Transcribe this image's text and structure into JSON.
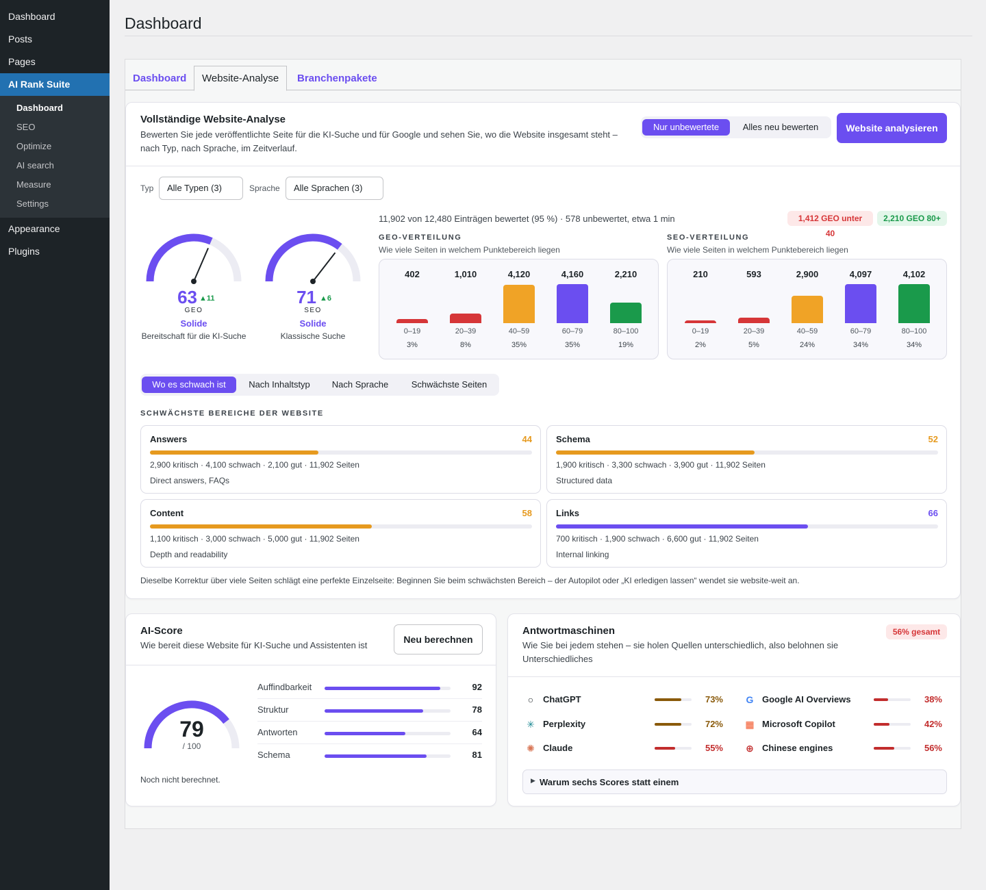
{
  "sidebar": {
    "items": [
      {
        "label": "Dashboard"
      },
      {
        "label": "Posts"
      },
      {
        "label": "Pages"
      },
      {
        "label": "AI Rank Suite"
      }
    ],
    "submenu": [
      {
        "label": "Dashboard"
      },
      {
        "label": "SEO"
      },
      {
        "label": "Optimize"
      },
      {
        "label": "AI search"
      },
      {
        "label": "Measure"
      },
      {
        "label": "Settings"
      }
    ],
    "bottom": [
      {
        "label": "Appearance"
      },
      {
        "label": "Plugins"
      }
    ]
  },
  "page": {
    "title": "Dashboard"
  },
  "tabs": [
    {
      "label": "Dashboard"
    },
    {
      "label": "Website-Analyse"
    },
    {
      "label": "Branchenpakete"
    }
  ],
  "analysis": {
    "title": "Vollständige Website-Analyse",
    "subtitle": "Bewerten Sie jede veröffentlichte Seite für die KI-Suche und für Google und sehen Sie, wo die Website insgesamt steht – nach Typ, nach Sprache, im Zeitverlauf.",
    "mode_unrated": "Nur unbewertete",
    "mode_all": "Alles neu bewerten",
    "analyze_button": "Website analysieren",
    "filter_type_label": "Typ",
    "filter_type_value": "Alle Typen (3)",
    "filter_lang_label": "Sprache",
    "filter_lang_value": "Alle Sprachen (3)",
    "progress_text": "11,902 von 12,480 Einträgen bewertet (95 %) · 578 unbewertet, etwa 1 min",
    "pill_low": "1,412 GEO unter 40",
    "pill_high": "2,210 GEO 80+",
    "geo": {
      "score": "63",
      "score_value": 63,
      "delta": "▲11",
      "key": "GEO",
      "status": "Solide",
      "desc": "Bereitschaft für die KI-Suche"
    },
    "seo": {
      "score": "71",
      "score_value": 71,
      "delta": "▲6",
      "key": "SEO",
      "status": "Solide",
      "desc": "Klassische Suche"
    },
    "geo_dist": {
      "title": "GEO-VERTEILUNG",
      "subtitle": "Wie viele Seiten in welchem Punktebereich liegen",
      "bins": [
        {
          "count": "402",
          "range": "0–19",
          "pct": "3%",
          "value": 402,
          "color": "#d63638"
        },
        {
          "count": "1,010",
          "range": "20–39",
          "pct": "8%",
          "value": 1010,
          "color": "#d63638"
        },
        {
          "count": "4,120",
          "range": "40–59",
          "pct": "35%",
          "value": 4120,
          "color": "#f0a326"
        },
        {
          "count": "4,160",
          "range": "60–79",
          "pct": "35%",
          "value": 4160,
          "color": "#6b4ef0"
        },
        {
          "count": "2,210",
          "range": "80–100",
          "pct": "19%",
          "value": 2210,
          "color": "#1a9a4b"
        }
      ]
    },
    "seo_dist": {
      "title": "SEO-VERTEILUNG",
      "subtitle": "Wie viele Seiten in welchem Punktebereich liegen",
      "bins": [
        {
          "count": "210",
          "range": "0–19",
          "pct": "2%",
          "value": 210,
          "color": "#d63638"
        },
        {
          "count": "593",
          "range": "20–39",
          "pct": "5%",
          "value": 593,
          "color": "#d63638"
        },
        {
          "count": "2,900",
          "range": "40–59",
          "pct": "24%",
          "value": 2900,
          "color": "#f0a326"
        },
        {
          "count": "4,097",
          "range": "60–79",
          "pct": "34%",
          "value": 4097,
          "color": "#6b4ef0"
        },
        {
          "count": "4,102",
          "range": "80–100",
          "pct": "34%",
          "value": 4102,
          "color": "#1a9a4b"
        }
      ]
    },
    "view_tabs": [
      {
        "label": "Wo es schwach ist"
      },
      {
        "label": "Nach Inhaltstyp"
      },
      {
        "label": "Nach Sprache"
      },
      {
        "label": "Schwächste Seiten"
      }
    ],
    "weak_title": "SCHWÄCHSTE BEREICHE DER WEBSITE",
    "areas": [
      {
        "name": "Answers",
        "score": "44",
        "value": 44,
        "color": "#e69a1f",
        "stats": "2,900 kritisch · 4,100 schwach · 2,100 gut · 11,902 Seiten",
        "desc": "Direct answers, FAQs"
      },
      {
        "name": "Schema",
        "score": "52",
        "value": 52,
        "color": "#e69a1f",
        "stats": "1,900 kritisch · 3,300 schwach · 3,900 gut · 11,902 Seiten",
        "desc": "Structured data"
      },
      {
        "name": "Content",
        "score": "58",
        "value": 58,
        "color": "#e69a1f",
        "stats": "1,100 kritisch · 3,000 schwach · 5,000 gut · 11,902 Seiten",
        "desc": "Depth and readability"
      },
      {
        "name": "Links",
        "score": "66",
        "value": 66,
        "color": "#6b4ef0",
        "stats": "700 kritisch · 1,900 schwach · 6,600 gut · 11,902 Seiten",
        "desc": "Internal linking"
      }
    ],
    "footnote": "Dieselbe Korrektur über viele Seiten schlägt eine perfekte Einzelseite: Beginnen Sie beim schwächsten Bereich – der Autopilot oder „KI erledigen lassen“ wendet sie website-weit an."
  },
  "ai_score": {
    "title": "AI-Score",
    "subtitle": "Wie bereit diese Website für KI-Suche und Assistenten ist",
    "recalc_button": "Neu berechnen",
    "score": "79",
    "score_value": 79,
    "max": "/ 100",
    "note": "Noch nicht berechnet.",
    "subscores": [
      {
        "label": "Auffindbarkeit",
        "value": "92",
        "num": 92
      },
      {
        "label": "Struktur",
        "value": "78",
        "num": 78
      },
      {
        "label": "Antworten",
        "value": "64",
        "num": 64
      },
      {
        "label": "Schema",
        "value": "81",
        "num": 81
      }
    ]
  },
  "engines": {
    "title": "Antwortmaschinen",
    "subtitle": "Wie Sie bei jedem stehen – sie holen Quellen unterschiedlich, also belohnen sie Unterschiedliches",
    "badge": "56% gesamt",
    "items": [
      {
        "name": "ChatGPT",
        "pct": "73%",
        "value": 73,
        "icon": "chatgpt-icon",
        "glyph": "○",
        "color": "#8a5a0b"
      },
      {
        "name": "Google AI Overviews",
        "pct": "38%",
        "value": 38,
        "icon": "google-icon",
        "glyph": "G",
        "color": "#c22d2d"
      },
      {
        "name": "Perplexity",
        "pct": "72%",
        "value": 72,
        "icon": "perplexity-icon",
        "glyph": "✳",
        "color": "#8a5a0b"
      },
      {
        "name": "Microsoft Copilot",
        "pct": "42%",
        "value": 42,
        "icon": "copilot-icon",
        "glyph": "▦",
        "color": "#c22d2d"
      },
      {
        "name": "Claude",
        "pct": "55%",
        "value": 55,
        "icon": "claude-icon",
        "glyph": "✺",
        "color": "#c22d2d"
      },
      {
        "name": "Chinese engines",
        "pct": "56%",
        "value": 56,
        "icon": "globe-icon",
        "glyph": "⊕",
        "color": "#c22d2d"
      }
    ],
    "details_label": "Warum sechs Scores statt einem"
  }
}
